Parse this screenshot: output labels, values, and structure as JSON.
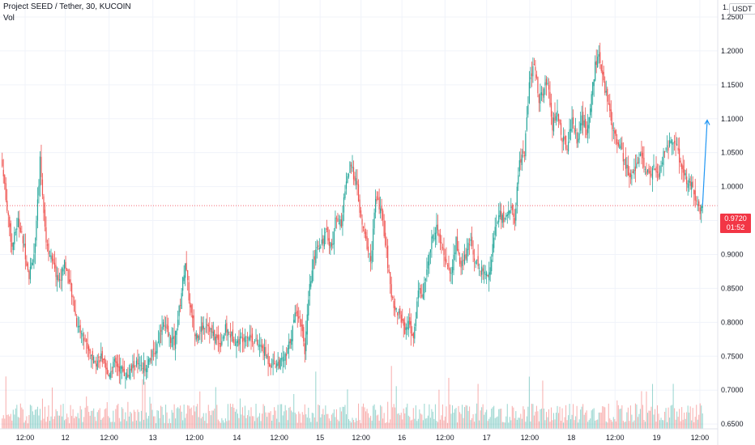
{
  "header": {
    "title": "Project SEED / Tether, 30, KUCOIN",
    "volume_label": "Vol",
    "currency": "USDT",
    "top_axis_fragment": "1."
  },
  "last_price": {
    "value": "0.9720",
    "countdown": "01:52"
  },
  "colors": {
    "up": "#26a69a",
    "down": "#ef5350",
    "price_line": "#f23645",
    "arrow": "#2196f3"
  },
  "chart_data": {
    "type": "candlestick",
    "y_ticks": [
      "1.2500",
      "1.2000",
      "1.1500",
      "1.1000",
      "1.0500",
      "1.0000",
      "0.9500",
      "0.9000",
      "0.8500",
      "0.8000",
      "0.7500",
      "0.7000",
      "0.6500"
    ],
    "ylim": [
      0.643,
      1.275
    ],
    "x_ticks": [
      {
        "label": "12:00",
        "pos": 0.035
      },
      {
        "label": "12",
        "pos": 0.091
      },
      {
        "label": "12:00",
        "pos": 0.152
      },
      {
        "label": "13",
        "pos": 0.213
      },
      {
        "label": "12:00",
        "pos": 0.271
      },
      {
        "label": "14",
        "pos": 0.33
      },
      {
        "label": "12:00",
        "pos": 0.389
      },
      {
        "label": "15",
        "pos": 0.446
      },
      {
        "label": "12:00",
        "pos": 0.503
      },
      {
        "label": "16",
        "pos": 0.56
      },
      {
        "label": "12:00",
        "pos": 0.62
      },
      {
        "label": "17",
        "pos": 0.678
      },
      {
        "label": "12:00",
        "pos": 0.738
      },
      {
        "label": "18",
        "pos": 0.796
      },
      {
        "label": "12:00",
        "pos": 0.857
      },
      {
        "label": "19",
        "pos": 0.915
      },
      {
        "label": "12:00",
        "pos": 0.975
      }
    ],
    "last_price": 0.972,
    "projection_target": 1.098,
    "anchors": [
      [
        0,
        1.03
      ],
      [
        4,
        0.97
      ],
      [
        8,
        0.91
      ],
      [
        13,
        0.95
      ],
      [
        17,
        0.92
      ],
      [
        22,
        0.87
      ],
      [
        27,
        0.91
      ],
      [
        31,
        1.04
      ],
      [
        36,
        0.92
      ],
      [
        42,
        0.88
      ],
      [
        47,
        0.86
      ],
      [
        51,
        0.89
      ],
      [
        57,
        0.84
      ],
      [
        61,
        0.8
      ],
      [
        66,
        0.78
      ],
      [
        71,
        0.76
      ],
      [
        76,
        0.74
      ],
      [
        81,
        0.75
      ],
      [
        86,
        0.72
      ],
      [
        92,
        0.74
      ],
      [
        98,
        0.73
      ],
      [
        103,
        0.72
      ],
      [
        109,
        0.74
      ],
      [
        114,
        0.73
      ],
      [
        119,
        0.74
      ],
      [
        126,
        0.76
      ],
      [
        131,
        0.8
      ],
      [
        136,
        0.78
      ],
      [
        141,
        0.77
      ],
      [
        146,
        0.83
      ],
      [
        150,
        0.89
      ],
      [
        154,
        0.82
      ],
      [
        158,
        0.78
      ],
      [
        163,
        0.79
      ],
      [
        168,
        0.8
      ],
      [
        173,
        0.78
      ],
      [
        179,
        0.77
      ],
      [
        183,
        0.79
      ],
      [
        188,
        0.78
      ],
      [
        193,
        0.77
      ],
      [
        198,
        0.78
      ],
      [
        203,
        0.78
      ],
      [
        208,
        0.77
      ],
      [
        214,
        0.76
      ],
      [
        219,
        0.74
      ],
      [
        224,
        0.74
      ],
      [
        228,
        0.74
      ],
      [
        233,
        0.75
      ],
      [
        238,
        0.79
      ],
      [
        241,
        0.82
      ],
      [
        245,
        0.8
      ],
      [
        248,
        0.76
      ],
      [
        252,
        0.85
      ],
      [
        257,
        0.91
      ],
      [
        262,
        0.92
      ],
      [
        266,
        0.93
      ],
      [
        270,
        0.91
      ],
      [
        274,
        0.96
      ],
      [
        278,
        0.94
      ],
      [
        281,
        1.0
      ],
      [
        285,
        1.03
      ],
      [
        290,
        1.01
      ],
      [
        294,
        0.95
      ],
      [
        298,
        0.92
      ],
      [
        302,
        0.89
      ],
      [
        306,
        0.98
      ],
      [
        310,
        0.97
      ],
      [
        314,
        0.92
      ],
      [
        318,
        0.85
      ],
      [
        322,
        0.82
      ],
      [
        326,
        0.81
      ],
      [
        330,
        0.79
      ],
      [
        334,
        0.8
      ],
      [
        337,
        0.77
      ],
      [
        341,
        0.85
      ],
      [
        345,
        0.84
      ],
      [
        349,
        0.89
      ],
      [
        352,
        0.92
      ],
      [
        356,
        0.94
      ],
      [
        360,
        0.91
      ],
      [
        364,
        0.89
      ],
      [
        368,
        0.87
      ],
      [
        372,
        0.92
      ],
      [
        376,
        0.88
      ],
      [
        380,
        0.9
      ],
      [
        384,
        0.92
      ],
      [
        388,
        0.89
      ],
      [
        392,
        0.88
      ],
      [
        396,
        0.87
      ],
      [
        400,
        0.88
      ],
      [
        404,
        0.94
      ],
      [
        408,
        0.96
      ],
      [
        412,
        0.95
      ],
      [
        416,
        0.97
      ],
      [
        420,
        0.95
      ],
      [
        424,
        1.04
      ],
      [
        428,
        1.05
      ],
      [
        432,
        1.15
      ],
      [
        436,
        1.18
      ],
      [
        440,
        1.13
      ],
      [
        444,
        1.14
      ],
      [
        447,
        1.16
      ],
      [
        451,
        1.09
      ],
      [
        455,
        1.11
      ],
      [
        459,
        1.07
      ],
      [
        463,
        1.06
      ],
      [
        467,
        1.1
      ],
      [
        471,
        1.07
      ],
      [
        475,
        1.1
      ],
      [
        479,
        1.08
      ],
      [
        482,
        1.12
      ],
      [
        486,
        1.18
      ],
      [
        489,
        1.19
      ],
      [
        493,
        1.15
      ],
      [
        496,
        1.13
      ],
      [
        500,
        1.09
      ],
      [
        504,
        1.07
      ],
      [
        508,
        1.05
      ],
      [
        511,
        1.03
      ],
      [
        515,
        1.01
      ],
      [
        519,
        1.03
      ],
      [
        523,
        1.05
      ],
      [
        527,
        1.02
      ],
      [
        531,
        1.02
      ],
      [
        535,
        1.03
      ],
      [
        538,
        1.01
      ],
      [
        542,
        1.05
      ],
      [
        546,
        1.06
      ],
      [
        550,
        1.07
      ],
      [
        554,
        1.05
      ],
      [
        557,
        1.02
      ],
      [
        561,
        1.01
      ],
      [
        565,
        1.0
      ],
      [
        568,
        0.98
      ],
      [
        572,
        0.96
      ],
      [
        574,
        0.972
      ]
    ]
  }
}
